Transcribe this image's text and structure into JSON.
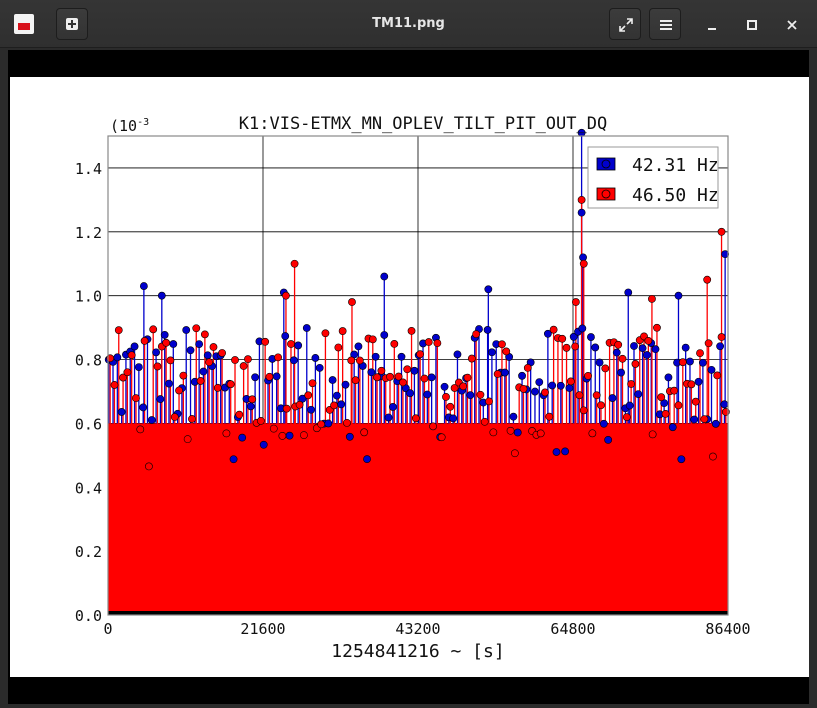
{
  "window": {
    "title": "TM11.png"
  },
  "icons": {
    "app": "image-viewer-app-icon",
    "new": "new-window-plus-icon",
    "fullscreen": "fullscreen-expand-icon",
    "menu": "hamburger-menu-icon",
    "minimize": "minimize-icon",
    "maximize": "maximize-icon",
    "close": "close-icon"
  },
  "chart_data": {
    "type": "scatter",
    "title": "K1:VIS-ETMX_MN_OPLEV_TILT_PIT_OUT_DQ",
    "xlabel": "1254841216 ~ [s]",
    "ylabel": "",
    "y_exponent_label": "(10",
    "y_exponent": "-3",
    "xlim": [
      0,
      86400
    ],
    "ylim": [
      0.0,
      1.5
    ],
    "xticks": [
      "0",
      "21600",
      "43200",
      "64800",
      "86400"
    ],
    "yticks": [
      "0.0",
      "0.2",
      "0.4",
      "0.6",
      "0.8",
      "1.0",
      "1.2",
      "1.4"
    ],
    "grid": true,
    "legend_position": "top-right",
    "style": "stem plot, dense points every ~ 60 s, most values between 0.55 and 0.9",
    "series": [
      {
        "name": "42.31 Hz",
        "color": "#0000cc",
        "peaks": [
          {
            "x": 5000,
            "y": 1.03
          },
          {
            "x": 7500,
            "y": 1.0
          },
          {
            "x": 24500,
            "y": 1.01
          },
          {
            "x": 38500,
            "y": 1.06
          },
          {
            "x": 53000,
            "y": 1.02
          },
          {
            "x": 66000,
            "y": 1.51
          },
          {
            "x": 66000,
            "y": 1.26
          },
          {
            "x": 66200,
            "y": 1.12
          },
          {
            "x": 72500,
            "y": 1.01
          },
          {
            "x": 79500,
            "y": 1.0
          },
          {
            "x": 86000,
            "y": 1.13
          }
        ],
        "typical_range": [
          0.55,
          0.9
        ]
      },
      {
        "name": "46.50 Hz",
        "color": "#ff0000",
        "peaks": [
          {
            "x": 26000,
            "y": 1.1
          },
          {
            "x": 24800,
            "y": 1.0
          },
          {
            "x": 34000,
            "y": 0.98
          },
          {
            "x": 66000,
            "y": 1.3
          },
          {
            "x": 66300,
            "y": 1.1
          },
          {
            "x": 65200,
            "y": 0.98
          },
          {
            "x": 75800,
            "y": 0.99
          },
          {
            "x": 85500,
            "y": 1.2
          },
          {
            "x": 83500,
            "y": 1.05
          }
        ],
        "typical_range": [
          0.55,
          0.9
        ]
      }
    ]
  }
}
